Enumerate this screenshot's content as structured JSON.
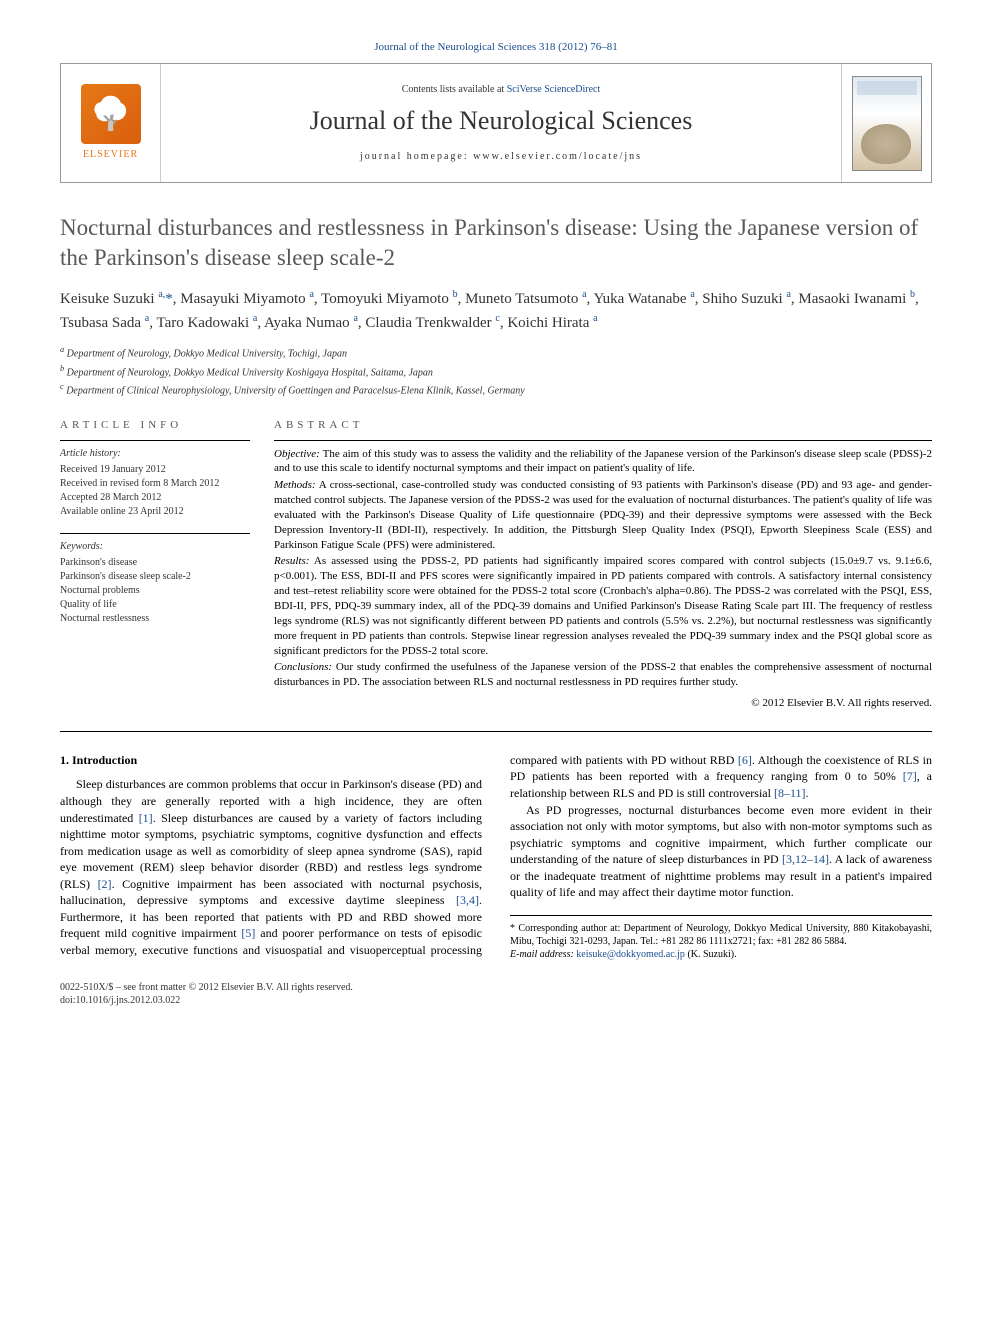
{
  "toplink": "Journal of the Neurological Sciences 318 (2012) 76–81",
  "header": {
    "contents_prefix": "Contents lists available at ",
    "contents_link": "SciVerse ScienceDirect",
    "journal_title": "Journal of the Neurological Sciences",
    "homepage_label": "journal homepage: www.elsevier.com/locate/jns",
    "elsevier": "ELSEVIER"
  },
  "title": "Nocturnal disturbances and restlessness in Parkinson's disease: Using the Japanese version of the Parkinson's disease sleep scale-2",
  "authors_html": "Keisuke Suzuki <sup>a,</sup><span class='author-star'>*</span>, Masayuki Miyamoto <sup>a</sup>, Tomoyuki Miyamoto <sup>b</sup>, Muneto Tatsumoto <sup>a</sup>, Yuka Watanabe <sup>a</sup>, Shiho Suzuki <sup>a</sup>, Masaoki Iwanami <sup>b</sup>, Tsubasa Sada <sup>a</sup>, Taro Kadowaki <sup>a</sup>, Ayaka Numao <sup>a</sup>, Claudia Trenkwalder <sup>c</sup>, Koichi Hirata <sup>a</sup>",
  "affiliations": [
    "a Department of Neurology, Dokkyo Medical University, Tochigi, Japan",
    "b Department of Neurology, Dokkyo Medical University Koshigaya Hospital, Saitama, Japan",
    "c Department of Clinical Neurophysiology, University of Goettingen and Paracelsus-Elena Klinik, Kassel, Germany"
  ],
  "article_info": {
    "heading": "ARTICLE INFO",
    "history_label": "Article history:",
    "history": [
      "Received 19 January 2012",
      "Received in revised form 8 March 2012",
      "Accepted 28 March 2012",
      "Available online 23 April 2012"
    ],
    "keywords_label": "Keywords:",
    "keywords": [
      "Parkinson's disease",
      "Parkinson's disease sleep scale-2",
      "Nocturnal problems",
      "Quality of life",
      "Nocturnal restlessness"
    ]
  },
  "abstract": {
    "heading": "ABSTRACT",
    "objective_label": "Objective:",
    "objective": " The aim of this study was to assess the validity and the reliability of the Japanese version of the Parkinson's disease sleep scale (PDSS)-2 and to use this scale to identify nocturnal symptoms and their impact on patient's quality of life.",
    "methods_label": "Methods:",
    "methods": " A cross-sectional, case-controlled study was conducted consisting of 93 patients with Parkinson's disease (PD) and 93 age- and gender-matched control subjects. The Japanese version of the PDSS-2 was used for the evaluation of nocturnal disturbances. The patient's quality of life was evaluated with the Parkinson's Disease Quality of Life questionnaire (PDQ-39) and their depressive symptoms were assessed with the Beck Depression Inventory-II (BDI-II), respectively. In addition, the Pittsburgh Sleep Quality Index (PSQI), Epworth Sleepiness Scale (ESS) and Parkinson Fatigue Scale (PFS) were administered.",
    "results_label": "Results:",
    "results": " As assessed using the PDSS-2, PD patients had significantly impaired scores compared with control subjects (15.0±9.7 vs. 9.1±6.6, p<0.001). The ESS, BDI-II and PFS scores were significantly impaired in PD patients compared with controls. A satisfactory internal consistency and test–retest reliability score were obtained for the PDSS-2 total score (Cronbach's alpha=0.86). The PDSS-2 was correlated with the PSQI, ESS, BDI-II, PFS, PDQ-39 summary index, all of the PDQ-39 domains and Unified Parkinson's Disease Rating Scale part III. The frequency of restless legs syndrome (RLS) was not significantly different between PD patients and controls (5.5% vs. 2.2%), but nocturnal restlessness was significantly more frequent in PD patients than controls. Stepwise linear regression analyses revealed the PDQ-39 summary index and the PSQI global score as significant predictors for the PDSS-2 total score.",
    "conclusions_label": "Conclusions:",
    "conclusions": " Our study confirmed the usefulness of the Japanese version of the PDSS-2 that enables the comprehensive assessment of nocturnal disturbances in PD. The association between RLS and nocturnal restlessness in PD requires further study.",
    "copyright": "© 2012 Elsevier B.V. All rights reserved."
  },
  "body": {
    "section1_heading": "1. Introduction",
    "para1_a": "Sleep disturbances are common problems that occur in Parkinson's disease (PD) and although they are generally reported with a high incidence, they are often underestimated ",
    "ref1": "[1]",
    "para1_b": ". Sleep disturbances are caused by a variety of factors including nighttime motor symptoms, psychiatric symptoms, cognitive dysfunction and effects from medication usage as well as comorbidity of sleep apnea syndrome (SAS), rapid eye movement (REM) sleep behavior disorder (RBD) and restless legs syndrome (RLS) ",
    "ref2": "[2]",
    "para1_c": ". Cognitive impairment has been associated with nocturnal",
    "para2_a": "psychosis, hallucination, depressive symptoms and excessive daytime sleepiness ",
    "ref34": "[3,4]",
    "para2_b": ". Furthermore, it has been reported that patients with PD and RBD showed more frequent mild cognitive impairment ",
    "ref5": "[5]",
    "para2_c": " and poorer performance on tests of episodic verbal memory, executive functions and visuospatial and visuoperceptual processing compared with patients with PD without RBD ",
    "ref6": "[6]",
    "para2_d": ". Although the coexistence of RLS in PD patients has been reported with a frequency ranging from 0 to 50% ",
    "ref7": "[7]",
    "para2_e": ", a relationship between RLS and PD is still controversial ",
    "ref811": "[8–11]",
    "para2_f": ".",
    "para3_a": "As PD progresses, nocturnal disturbances become even more evident in their association not only with motor symptoms, but also with non-motor symptoms such as psychiatric symptoms and cognitive impairment, which further complicate our understanding of the nature of sleep disturbances in PD ",
    "ref31214": "[3,12–14]",
    "para3_b": ". A lack of awareness or the inadequate treatment of nighttime problems may result in a patient's impaired quality of life and may affect their daytime motor function."
  },
  "footnote": {
    "corr": "* Corresponding author at: Department of Neurology, Dokkyo Medical University, 880 Kitakobayashi, Mibu, Tochigi 321-0293, Japan. Tel.: +81 282 86 1111x2721; fax: +81 282 86 5884.",
    "email_label": "E-mail address: ",
    "email": "keisuke@dokkyomed.ac.jp",
    "email_suffix": " (K. Suzuki)."
  },
  "footer": {
    "line1": "0022-510X/$ – see front matter © 2012 Elsevier B.V. All rights reserved.",
    "line2": "doi:10.1016/j.jns.2012.03.022"
  }
}
